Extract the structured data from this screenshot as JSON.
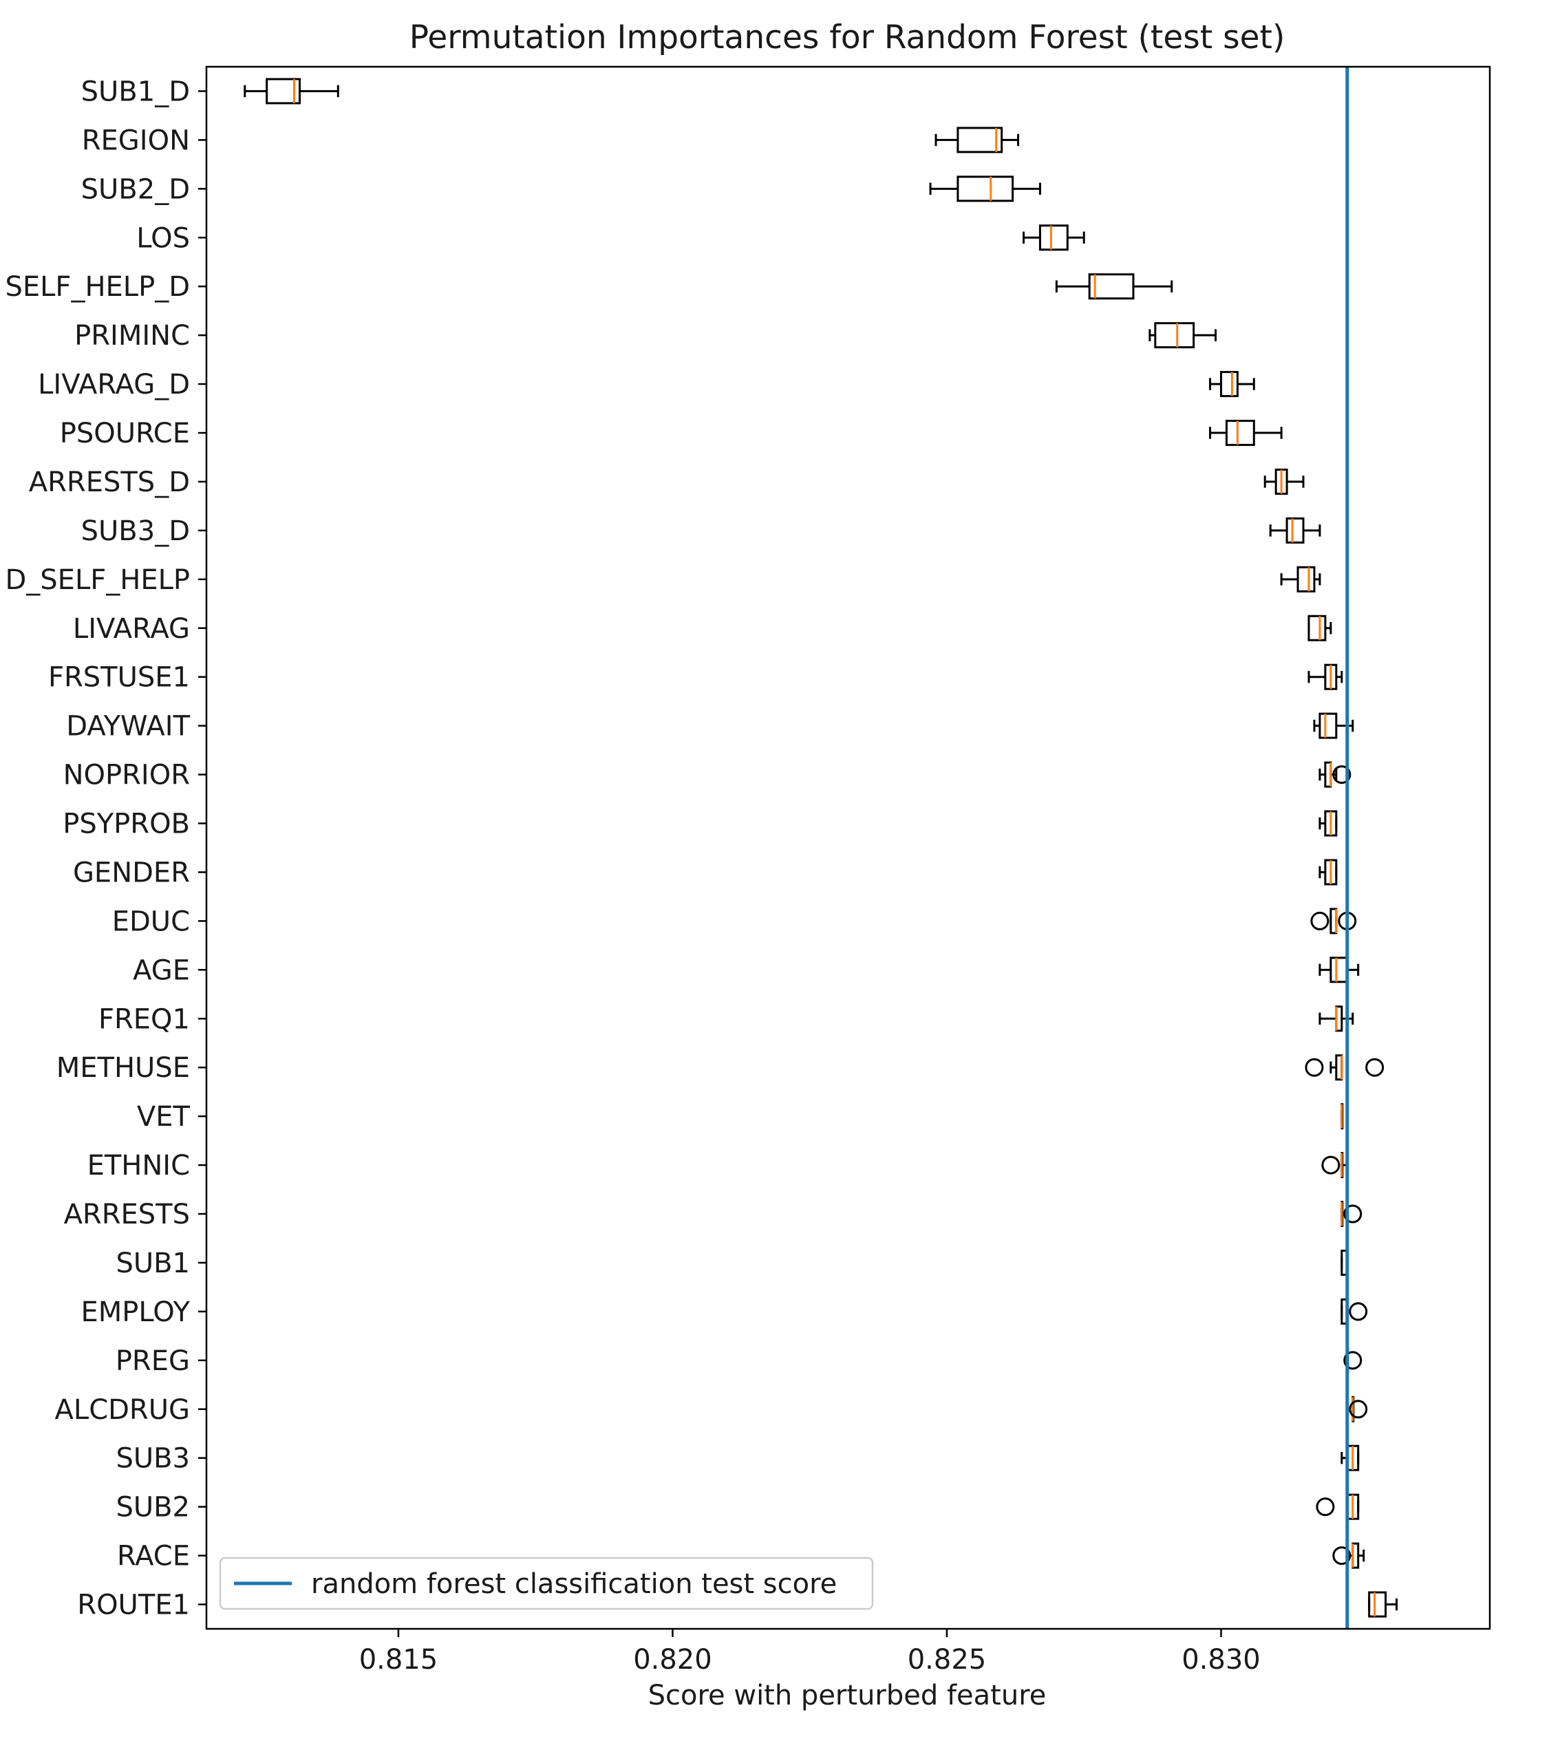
{
  "chart_data": {
    "type": "boxplot",
    "orientation": "horizontal",
    "title": "Permutation Importances for Random Forest (test set)",
    "xlabel": "Score with perturbed feature",
    "ylabel": "",
    "xlim": [
      0.8115,
      0.8349
    ],
    "xticks": [
      0.815,
      0.82,
      0.825,
      0.83
    ],
    "xtick_labels": [
      "0.815",
      "0.820",
      "0.825",
      "0.830"
    ],
    "categories": [
      "SUB1_D",
      "REGION",
      "SUB2_D",
      "LOS",
      "SELF_HELP_D",
      "PRIMINC",
      "LIVARAG_D",
      "PSOURCE",
      "ARRESTS_D",
      "SUB3_D",
      "D_SELF_HELP",
      "LIVARAG",
      "FRSTUSE1",
      "DAYWAIT",
      "NOPRIOR",
      "PSYPROB",
      "GENDER",
      "EDUC",
      "AGE",
      "FREQ1",
      "METHUSE",
      "VET",
      "ETHNIC",
      "ARRESTS",
      "SUB1",
      "EMPLOY",
      "PREG",
      "ALCDRUG",
      "SUB3",
      "SUB2",
      "RACE",
      "ROUTE1"
    ],
    "boxes": [
      {
        "whislo": 0.8122,
        "q1": 0.8126,
        "med": 0.8131,
        "q3": 0.8132,
        "whishi": 0.8139,
        "fliers": []
      },
      {
        "whislo": 0.8248,
        "q1": 0.8252,
        "med": 0.8259,
        "q3": 0.826,
        "whishi": 0.8263,
        "fliers": []
      },
      {
        "whislo": 0.8247,
        "q1": 0.8252,
        "med": 0.8258,
        "q3": 0.8262,
        "whishi": 0.8267,
        "fliers": []
      },
      {
        "whislo": 0.8264,
        "q1": 0.8267,
        "med": 0.8269,
        "q3": 0.8272,
        "whishi": 0.8275,
        "fliers": []
      },
      {
        "whislo": 0.827,
        "q1": 0.8276,
        "med": 0.8277,
        "q3": 0.8284,
        "whishi": 0.8291,
        "fliers": []
      },
      {
        "whislo": 0.8287,
        "q1": 0.8288,
        "med": 0.8292,
        "q3": 0.8295,
        "whishi": 0.8299,
        "fliers": []
      },
      {
        "whislo": 0.8298,
        "q1": 0.83,
        "med": 0.8302,
        "q3": 0.8303,
        "whishi": 0.8306,
        "fliers": []
      },
      {
        "whislo": 0.8298,
        "q1": 0.8301,
        "med": 0.8303,
        "q3": 0.8306,
        "whishi": 0.8311,
        "fliers": []
      },
      {
        "whislo": 0.8308,
        "q1": 0.831,
        "med": 0.8311,
        "q3": 0.8312,
        "whishi": 0.8315,
        "fliers": []
      },
      {
        "whislo": 0.8309,
        "q1": 0.8312,
        "med": 0.8313,
        "q3": 0.8315,
        "whishi": 0.8318,
        "fliers": []
      },
      {
        "whislo": 0.8311,
        "q1": 0.8314,
        "med": 0.8316,
        "q3": 0.8317,
        "whishi": 0.8318,
        "fliers": []
      },
      {
        "whislo": 0.8316,
        "q1": 0.8316,
        "med": 0.8318,
        "q3": 0.8319,
        "whishi": 0.832,
        "fliers": []
      },
      {
        "whislo": 0.8316,
        "q1": 0.8319,
        "med": 0.832,
        "q3": 0.8321,
        "whishi": 0.8322,
        "fliers": []
      },
      {
        "whislo": 0.8317,
        "q1": 0.8318,
        "med": 0.8319,
        "q3": 0.8321,
        "whishi": 0.8324,
        "fliers": []
      },
      {
        "whislo": 0.8318,
        "q1": 0.8319,
        "med": 0.832,
        "q3": 0.832,
        "whishi": 0.8321,
        "fliers": [
          0.8322
        ]
      },
      {
        "whislo": 0.8318,
        "q1": 0.8319,
        "med": 0.832,
        "q3": 0.8321,
        "whishi": 0.8321,
        "fliers": []
      },
      {
        "whislo": 0.8318,
        "q1": 0.8319,
        "med": 0.832,
        "q3": 0.8321,
        "whishi": 0.8321,
        "fliers": []
      },
      {
        "whislo": 0.832,
        "q1": 0.832,
        "med": 0.8321,
        "q3": 0.8321,
        "whishi": 0.8321,
        "fliers": [
          0.8318,
          0.8323
        ]
      },
      {
        "whislo": 0.8318,
        "q1": 0.832,
        "med": 0.8321,
        "q3": 0.8323,
        "whishi": 0.8325,
        "fliers": []
      },
      {
        "whislo": 0.8318,
        "q1": 0.8321,
        "med": 0.8321,
        "q3": 0.8322,
        "whishi": 0.8324,
        "fliers": []
      },
      {
        "whislo": 0.832,
        "q1": 0.8321,
        "med": 0.8322,
        "q3": 0.8322,
        "whishi": 0.8322,
        "fliers": [
          0.8317,
          0.8328
        ]
      },
      {
        "whislo": 0.8322,
        "q1": 0.8322,
        "med": 0.8322,
        "q3": 0.8322,
        "whishi": 0.8322,
        "fliers": []
      },
      {
        "whislo": 0.8322,
        "q1": 0.8322,
        "med": 0.8322,
        "q3": 0.8322,
        "whishi": 0.8323,
        "fliers": [
          0.832
        ]
      },
      {
        "whislo": 0.8322,
        "q1": 0.8322,
        "med": 0.8322,
        "q3": 0.8322,
        "whishi": 0.8322,
        "fliers": [
          0.8324
        ]
      },
      {
        "whislo": 0.8322,
        "q1": 0.8322,
        "med": 0.8323,
        "q3": 0.8323,
        "whishi": 0.8323,
        "fliers": []
      },
      {
        "whislo": 0.8322,
        "q1": 0.8322,
        "med": 0.8323,
        "q3": 0.8323,
        "whishi": 0.8323,
        "fliers": [
          0.8325
        ]
      },
      {
        "whislo": 0.8323,
        "q1": 0.8323,
        "med": 0.8323,
        "q3": 0.8323,
        "whishi": 0.8323,
        "fliers": [
          0.8324
        ]
      },
      {
        "whislo": 0.8324,
        "q1": 0.8324,
        "med": 0.8324,
        "q3": 0.8324,
        "whishi": 0.8324,
        "fliers": [
          0.8325
        ]
      },
      {
        "whislo": 0.8322,
        "q1": 0.8323,
        "med": 0.8324,
        "q3": 0.8325,
        "whishi": 0.8325,
        "fliers": []
      },
      {
        "whislo": 0.8323,
        "q1": 0.8323,
        "med": 0.8324,
        "q3": 0.8325,
        "whishi": 0.8325,
        "fliers": [
          0.8319
        ]
      },
      {
        "whislo": 0.8323,
        "q1": 0.8324,
        "med": 0.8324,
        "q3": 0.8325,
        "whishi": 0.8326,
        "fliers": [
          0.8322
        ]
      },
      {
        "whislo": 0.8327,
        "q1": 0.8327,
        "med": 0.8328,
        "q3": 0.833,
        "whishi": 0.8332,
        "fliers": []
      }
    ],
    "reference_line": {
      "x": 0.8323,
      "label": "random forest classification test score",
      "color": "#1f77b4"
    },
    "legend": {
      "placement": "lower-left",
      "entries": [
        "random forest classification test score"
      ]
    },
    "colors": {
      "box": "#000000",
      "median": "#ff7f0e",
      "reference": "#1f77b4"
    },
    "grid": false
  }
}
